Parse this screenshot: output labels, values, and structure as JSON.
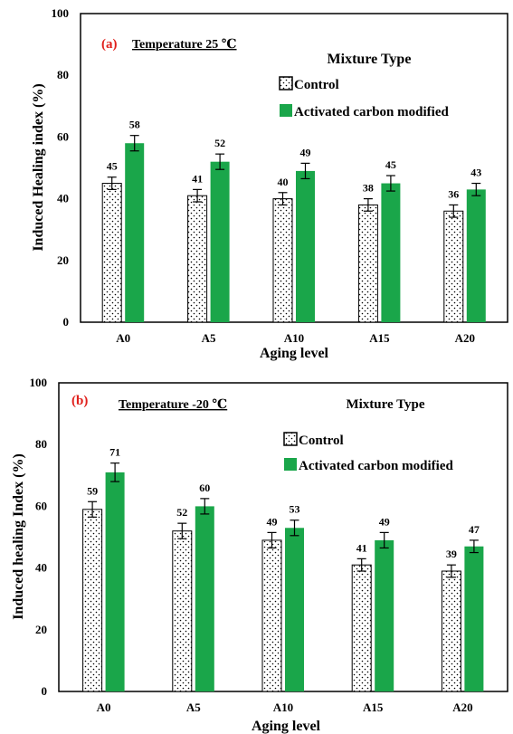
{
  "chart_data": [
    {
      "type": "bar",
      "panel_label": "(a)",
      "title": "Temperature  25 ℃",
      "xlabel": "Aging level",
      "ylabel": "Induced Healing index (%)",
      "ylim": [
        0,
        100
      ],
      "yticks": [
        0,
        20,
        40,
        60,
        80,
        100
      ],
      "categories": [
        "A0",
        "A5",
        "A10",
        "A15",
        "A20"
      ],
      "legend_title": "Mixture Type",
      "legend_position": "top-right",
      "series": [
        {
          "name": "Control",
          "values": [
            45,
            41,
            40,
            38,
            36
          ],
          "error": [
            2,
            2,
            2,
            2,
            2
          ],
          "color": "#ffffff",
          "pattern": "dots"
        },
        {
          "name": "Activated carbon modified",
          "values": [
            58,
            52,
            49,
            45,
            43
          ],
          "error": [
            2.5,
            2.5,
            2.5,
            2.5,
            2
          ],
          "color": "#1aa64a",
          "pattern": "solid"
        }
      ],
      "data_labels": [
        [
          "45",
          "41",
          "40",
          "38",
          "36"
        ],
        [
          "58",
          "52",
          "49",
          "45",
          "43"
        ]
      ]
    },
    {
      "type": "bar",
      "panel_label": "(b)",
      "title": "Temperature  -20 ℃",
      "xlabel": "Aging level",
      "ylabel": "Induced healing Index (%)",
      "ylim": [
        0,
        100
      ],
      "yticks": [
        0,
        20,
        40,
        60,
        80,
        100
      ],
      "categories": [
        "A0",
        "A5",
        "A10",
        "A15",
        "A20"
      ],
      "legend_title": "Mixture Type",
      "legend_position": "top-right",
      "series": [
        {
          "name": "Control",
          "values": [
            59,
            52,
            49,
            41,
            39
          ],
          "error": [
            2.5,
            2.5,
            2.5,
            2,
            2
          ],
          "color": "#ffffff",
          "pattern": "dots"
        },
        {
          "name": "Activated carbon modified",
          "values": [
            71,
            60,
            53,
            49,
            47
          ],
          "error": [
            3,
            2.5,
            2.5,
            2.5,
            2
          ],
          "color": "#1aa64a",
          "pattern": "solid"
        }
      ],
      "data_labels": [
        [
          "59",
          "52",
          "49",
          "41",
          "39"
        ],
        [
          "71",
          "60",
          "53",
          "49",
          "47"
        ]
      ]
    }
  ]
}
